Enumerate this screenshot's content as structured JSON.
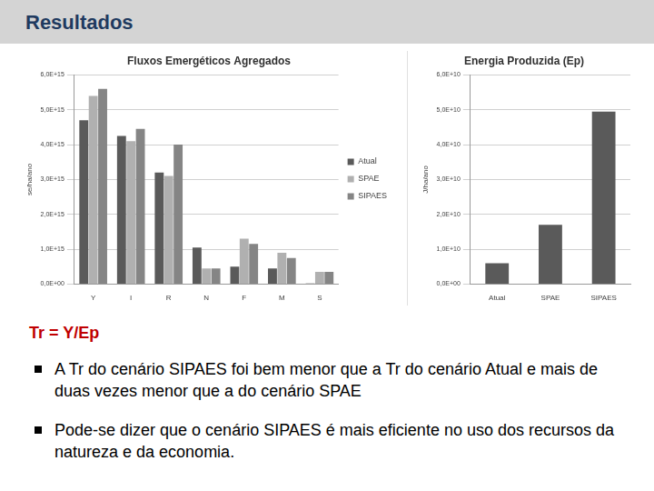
{
  "title": "Resultados",
  "chart_data": [
    {
      "type": "bar",
      "title": "Fluxos Emergéticos Agregados",
      "y_label": "se/ha/ano",
      "categories": [
        "Y",
        "I",
        "R",
        "N",
        "F",
        "M",
        "S"
      ],
      "series": [
        {
          "name": "Atual",
          "color": "#5a5a5a",
          "values": [
            4700000000000000.0,
            4250000000000000.0,
            3200000000000000.0,
            1050000000000000.0,
            500000000000000.0,
            450000000000000.0,
            20000000000000.0
          ]
        },
        {
          "name": "SPAE",
          "color": "#b0b0b0",
          "values": [
            5400000000000000.0,
            4100000000000000.0,
            3100000000000000.0,
            450000000000000.0,
            1300000000000000.0,
            900000000000000.0,
            350000000000000.0
          ]
        },
        {
          "name": "SIPAES",
          "color": "#858585",
          "values": [
            5600000000000000.0,
            4450000000000000.0,
            4000000000000000.0,
            450000000000000.0,
            1150000000000000.0,
            750000000000000.0,
            350000000000000.0
          ]
        }
      ],
      "ylim": [
        0,
        6000000000000000.0
      ],
      "yticks": [
        {
          "value": 0,
          "label": "0,0E+00"
        },
        {
          "value": 1000000000000000.0,
          "label": "1,0E+15"
        },
        {
          "value": 2000000000000000.0,
          "label": "2,0E+15"
        },
        {
          "value": 3000000000000000.0,
          "label": "3,0E+15"
        },
        {
          "value": 4000000000000000.0,
          "label": "4,0E+15"
        },
        {
          "value": 5000000000000000.0,
          "label": "5,0E+15"
        },
        {
          "value": 6000000000000000.0,
          "label": "6,0E+15"
        }
      ],
      "grid": true,
      "legend": "right"
    },
    {
      "type": "bar",
      "title": "Energia Produzida (Ep)",
      "y_label": "J/ha/ano",
      "categories": [
        "Atual",
        "SPAE",
        "SIPAES"
      ],
      "values": [
        6000000000.0,
        17000000000.0,
        49500000000.0
      ],
      "color": "#5a5a5a",
      "ylim": [
        0,
        60000000000.0
      ],
      "yticks": [
        {
          "value": 0,
          "label": "0,0E+00"
        },
        {
          "value": 10000000000.0,
          "label": "1,0E+10"
        },
        {
          "value": 20000000000.0,
          "label": "2,0E+10"
        },
        {
          "value": 30000000000.0,
          "label": "3,0E+10"
        },
        {
          "value": 40000000000.0,
          "label": "4,0E+10"
        },
        {
          "value": 50000000000.0,
          "label": "5,0E+10"
        },
        {
          "value": 60000000000.0,
          "label": "6,0E+10"
        }
      ],
      "grid": true
    }
  ],
  "formula": "Tr = Y/Ep",
  "bullets": [
    "A Tr do cenário SIPAES foi bem menor que a Tr do cenário Atual e mais de duas vezes menor que a do cenário SPAE",
    "Pode-se dizer que o cenário SIPAES é mais eficiente no uso dos recursos da natureza e da economia."
  ]
}
